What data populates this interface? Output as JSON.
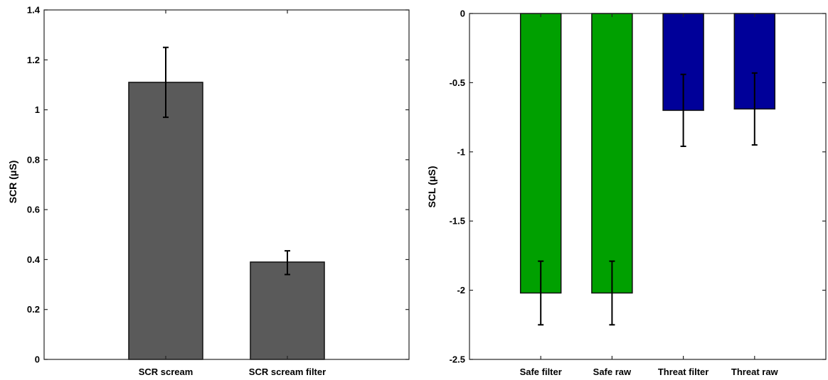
{
  "chart_data": [
    {
      "type": "bar",
      "title": "",
      "xlabel": "",
      "ylabel": "SCR (μS)",
      "ylim": [
        0,
        1.4
      ],
      "yticks": [
        0,
        0.2,
        0.4,
        0.6,
        0.8,
        1,
        1.2,
        1.4
      ],
      "ytick_labels": [
        "0",
        "0.2",
        "0.4",
        "0.6",
        "0.8",
        "1",
        "1.2",
        "1.4"
      ],
      "categories": [
        "SCR scream",
        "SCR scream filter"
      ],
      "values": [
        1.11,
        0.39
      ],
      "error_low": [
        0.97,
        0.34
      ],
      "error_high": [
        1.25,
        0.435
      ],
      "bar_colors": [
        "#5a5a5a",
        "#5a5a5a"
      ],
      "grid": false,
      "legend": "none"
    },
    {
      "type": "bar",
      "title": "",
      "xlabel": "",
      "ylabel": "SCL (μS)",
      "ylim": [
        -2.5,
        0
      ],
      "yticks": [
        -2.5,
        -2,
        -1.5,
        -1,
        -0.5,
        0
      ],
      "ytick_labels": [
        "-2.5",
        "-2",
        "-1.5",
        "-1",
        "-0.5",
        "0"
      ],
      "categories": [
        "Safe filter",
        "Safe raw",
        "Threat filter",
        "Threat raw"
      ],
      "values": [
        -2.02,
        -2.02,
        -0.7,
        -0.69
      ],
      "error_low": [
        -2.25,
        -2.25,
        -0.96,
        -0.95
      ],
      "error_high": [
        -1.79,
        -1.79,
        -0.44,
        -0.43
      ],
      "bar_colors": [
        "#00a000",
        "#00a000",
        "#000099",
        "#000099"
      ],
      "grid": false,
      "legend": "none"
    }
  ]
}
